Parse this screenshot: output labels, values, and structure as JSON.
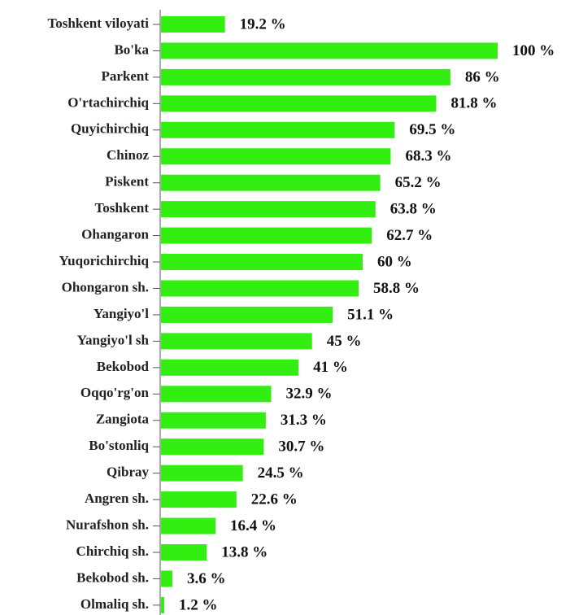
{
  "chart_data": {
    "type": "bar",
    "orientation": "horizontal",
    "color": "#33ee11",
    "categories": [
      "Toshkent viloyati",
      "Bo'ka",
      "Parkent",
      "O'rtachirchiq",
      "Quyichirchiq",
      "Chinoz",
      "Piskent",
      "Toshkent",
      "Ohangaron",
      "Yuqorichirchiq",
      "Ohongaron sh.",
      "Yangiyo'l",
      "Yangiyo'l sh",
      "Bekobod",
      "Oqqo'rg'on",
      "Zangiota",
      "Bo'stonliq",
      "Qibray",
      "Angren sh.",
      "Nurafshon sh.",
      "Chirchiq sh.",
      "Bekobod sh.",
      "Olmaliq sh."
    ],
    "values": [
      19.2,
      100,
      86,
      81.8,
      69.5,
      68.3,
      65.2,
      63.8,
      62.7,
      60,
      58.8,
      51.1,
      45,
      41,
      32.9,
      31.3,
      30.7,
      24.5,
      22.6,
      16.4,
      13.8,
      3.6,
      1.2
    ],
    "value_labels": [
      "19.2 %",
      "100 %",
      "86 %",
      "81.8 %",
      "69.5 %",
      "68.3 %",
      "65.2 %",
      "63.8 %",
      "62.7 %",
      "60 %",
      "58.8 %",
      "51.1 %",
      "45 %",
      "41 %",
      "32.9 %",
      "31.3 %",
      "30.7 %",
      "24.5 %",
      "22.6 %",
      "16.4 %",
      "13.8 %",
      "3.6 %",
      "1.2 %"
    ]
  }
}
